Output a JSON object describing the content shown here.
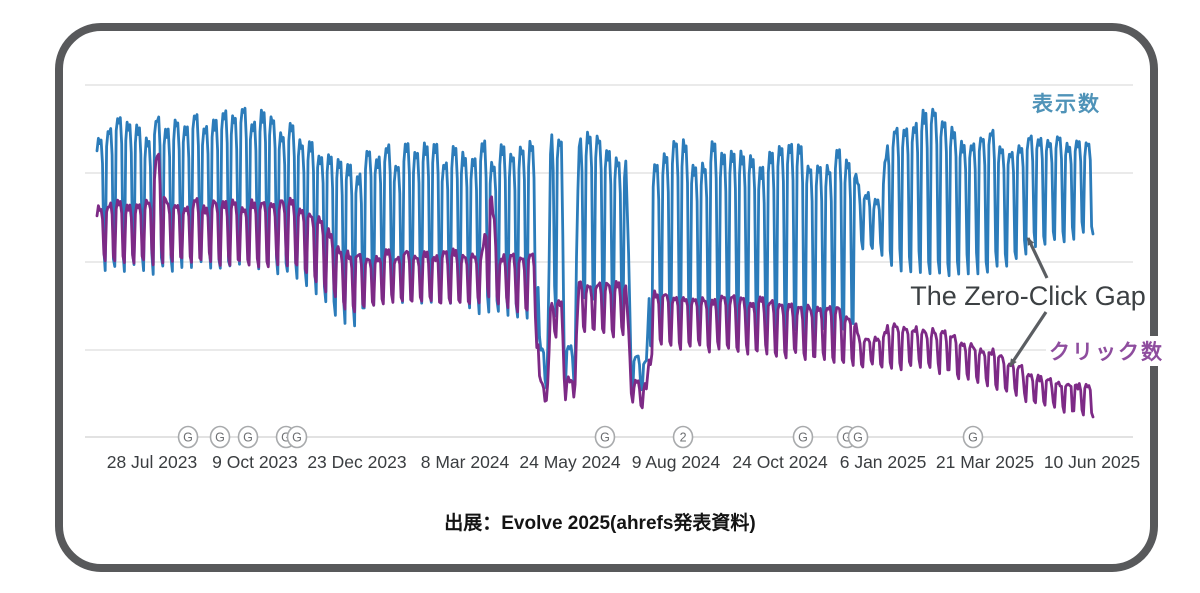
{
  "figure": {
    "border_color": "#58595b",
    "background": "#ffffff"
  },
  "caption": {
    "text": "出展：Evolve 2025(ahrefs発表資料)"
  },
  "chart_data": {
    "type": "line",
    "title": "The Zero-Click Gap",
    "xlabel": "",
    "ylabel": "",
    "legend_position": "inline-labels",
    "grid": true,
    "y_axis": {
      "tick_labels_visible": false,
      "value_range": [
        0,
        100
      ],
      "gridline_count": 5
    },
    "x_axis": {
      "ticks": [
        {
          "t": 0.0552,
          "label": "28 Jul 2023"
        },
        {
          "t": 0.1586,
          "label": "9 Oct 2023"
        },
        {
          "t": 0.261,
          "label": "23 Dec 2023"
        },
        {
          "t": 0.3695,
          "label": "8 Mar 2024"
        },
        {
          "t": 0.4749,
          "label": "24 May 2024"
        },
        {
          "t": 0.5813,
          "label": "9 Aug 2024"
        },
        {
          "t": 0.6858,
          "label": "24 Oct 2024"
        },
        {
          "t": 0.7892,
          "label": "6 Jan 2025"
        },
        {
          "t": 0.8916,
          "label": "21 Mar 2025"
        },
        {
          "t": 0.999,
          "label": "10 Jun 2025"
        }
      ]
    },
    "event_markers": [
      {
        "t": 0.0914,
        "label": "G"
      },
      {
        "t": 0.1235,
        "label": "G"
      },
      {
        "t": 0.1516,
        "label": "G"
      },
      {
        "t": 0.1898,
        "label": "G"
      },
      {
        "t": 0.2008,
        "label": "G"
      },
      {
        "t": 0.51,
        "label": "G"
      },
      {
        "t": 0.5884,
        "label": "2"
      },
      {
        "t": 0.7088,
        "label": "G"
      },
      {
        "t": 0.753,
        "label": "G"
      },
      {
        "t": 0.7641,
        "label": "G"
      },
      {
        "t": 0.8795,
        "label": "G"
      }
    ],
    "synthesis": {
      "days": 727,
      "weekday_pattern": [
        0.88,
        1.0,
        0.95,
        0.99,
        0.8,
        0.12,
        0.0
      ],
      "peak_jitter": 0.09,
      "noise": 0.8
    },
    "series": [
      {
        "name": "表示数",
        "semantic": "impressions",
        "color": "#2c7cba",
        "label_color": "#4f93b8",
        "envelope": [
          [
            0.0,
            88,
            47
          ],
          [
            0.073,
            88,
            47
          ],
          [
            0.154,
            91,
            48
          ],
          [
            0.199,
            87,
            45
          ],
          [
            0.214,
            84,
            42
          ],
          [
            0.254,
            77,
            31
          ],
          [
            0.287,
            80,
            39
          ],
          [
            0.354,
            81,
            37
          ],
          [
            0.43,
            82,
            33
          ],
          [
            0.44,
            82,
            33
          ],
          [
            0.4445,
            26,
            14
          ],
          [
            0.453,
            26,
            14
          ],
          [
            0.4555,
            86,
            35
          ],
          [
            0.4665,
            86,
            35
          ],
          [
            0.47,
            26,
            14
          ],
          [
            0.479,
            26,
            14
          ],
          [
            0.484,
            84,
            39
          ],
          [
            0.494,
            87,
            39
          ],
          [
            0.52,
            82,
            33
          ],
          [
            0.531,
            82,
            33
          ],
          [
            0.537,
            22,
            13
          ],
          [
            0.552,
            22,
            13
          ],
          [
            0.558,
            81,
            29
          ],
          [
            0.656,
            80,
            29
          ],
          [
            0.758,
            79,
            28
          ],
          [
            0.766,
            68,
            53
          ],
          [
            0.786,
            68,
            53
          ],
          [
            0.794,
            85,
            48
          ],
          [
            0.827,
            94,
            46
          ],
          [
            0.847,
            88,
            44
          ],
          [
            0.877,
            86,
            46
          ],
          [
            0.907,
            84,
            48
          ],
          [
            0.955,
            84,
            55
          ],
          [
            1.0,
            82,
            58
          ]
        ]
      },
      {
        "name": "クリック数",
        "semantic": "clicks",
        "color": "#7d2a86",
        "label_color": "#8e4d9e",
        "envelope": [
          [
            0.0,
            66,
            50
          ],
          [
            0.053,
            66,
            50
          ],
          [
            0.061,
            81,
            49
          ],
          [
            0.069,
            66,
            50
          ],
          [
            0.154,
            66,
            49
          ],
          [
            0.199,
            66,
            48
          ],
          [
            0.214,
            64,
            46
          ],
          [
            0.254,
            51,
            35
          ],
          [
            0.287,
            52,
            38
          ],
          [
            0.354,
            52,
            38
          ],
          [
            0.387,
            52,
            38
          ],
          [
            0.395,
            72,
            40
          ],
          [
            0.403,
            52,
            37
          ],
          [
            0.43,
            52,
            35
          ],
          [
            0.44,
            50,
            33
          ],
          [
            0.4445,
            16,
            10
          ],
          [
            0.453,
            16,
            10
          ],
          [
            0.4555,
            38,
            28
          ],
          [
            0.4665,
            38,
            28
          ],
          [
            0.47,
            16,
            10
          ],
          [
            0.479,
            16,
            10
          ],
          [
            0.484,
            44,
            30
          ],
          [
            0.494,
            44,
            30
          ],
          [
            0.52,
            43,
            29
          ],
          [
            0.531,
            43,
            29
          ],
          [
            0.537,
            15,
            9
          ],
          [
            0.552,
            15,
            9
          ],
          [
            0.558,
            40,
            26
          ],
          [
            0.656,
            39,
            24
          ],
          [
            0.758,
            35,
            21
          ],
          [
            0.766,
            28,
            20
          ],
          [
            0.786,
            28,
            20
          ],
          [
            0.794,
            32,
            20
          ],
          [
            0.842,
            31,
            19
          ],
          [
            0.877,
            26,
            16
          ],
          [
            0.907,
            23,
            13
          ],
          [
            0.947,
            17,
            9
          ],
          [
            1.0,
            14,
            6
          ]
        ]
      }
    ],
    "annotations": {
      "gap_label_text": "The Zero-Click Gap",
      "arrows": [
        {
          "from": [
            1047,
            278
          ],
          "to": [
            1028,
            238
          ],
          "points_to": "impressions-line"
        },
        {
          "from": [
            1046,
            312
          ],
          "to": [
            1010,
            366
          ],
          "points_to": "clicks-line"
        }
      ]
    }
  }
}
